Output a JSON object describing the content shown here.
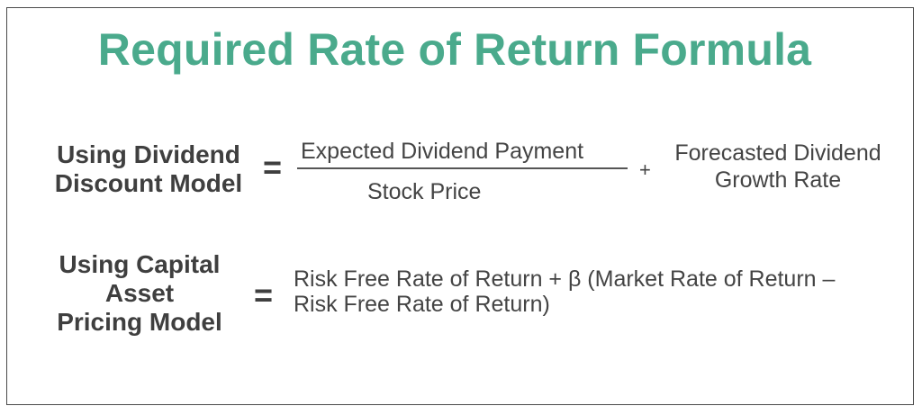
{
  "title": "Required Rate of Return Formula",
  "ddm": {
    "label_line1": "Using Dividend",
    "label_line2": "Discount Model",
    "equals": "=",
    "numerator": "Expected Dividend Payment",
    "denominator": "Stock Price",
    "plus": "+",
    "growth_line1": "Forecasted Dividend",
    "growth_line2": "Growth Rate"
  },
  "capm": {
    "label_line1": "Using Capital",
    "label_line2": "Asset",
    "label_line3": "Pricing Model",
    "equals": "=",
    "formula_line1": "Risk Free Rate of Return + β (Market Rate of Return –",
    "formula_line2": "Risk Free Rate of Return)"
  }
}
